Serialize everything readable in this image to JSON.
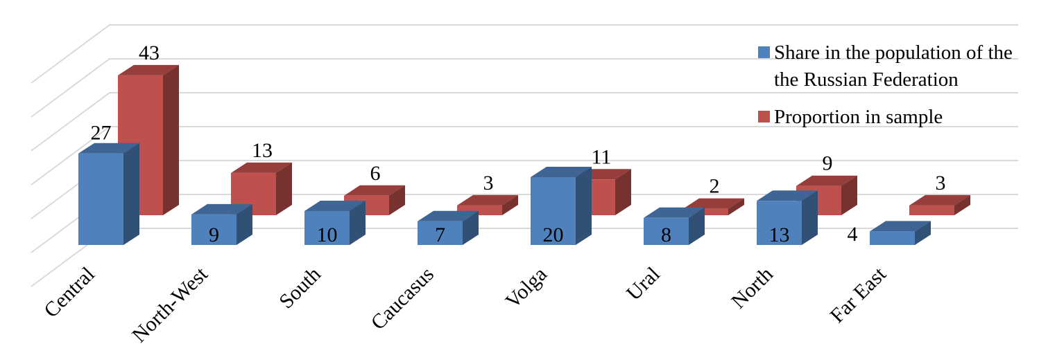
{
  "chart_data": {
    "type": "bar",
    "three_d": true,
    "categories": [
      "Central",
      "North-West",
      "South",
      "Caucasus",
      "Volga",
      "Ural",
      "North",
      "Far East"
    ],
    "series": [
      {
        "name": "Share in the population of the Russian Federation",
        "color": "#4f81bd",
        "values": [
          27,
          9,
          10,
          7,
          20,
          8,
          13,
          4
        ]
      },
      {
        "name": "Proportion in sample",
        "color": "#c0504d",
        "values": [
          43,
          13,
          6,
          3,
          11,
          2,
          9,
          3
        ]
      }
    ],
    "legend": {
      "position": "top-right",
      "entries": [
        "Share in the population of the",
        "the Russian Federation",
        "Proportion in sample"
      ]
    },
    "grid": true,
    "ylim": [
      0,
      50
    ],
    "title": "",
    "xlabel": "",
    "ylabel": ""
  }
}
